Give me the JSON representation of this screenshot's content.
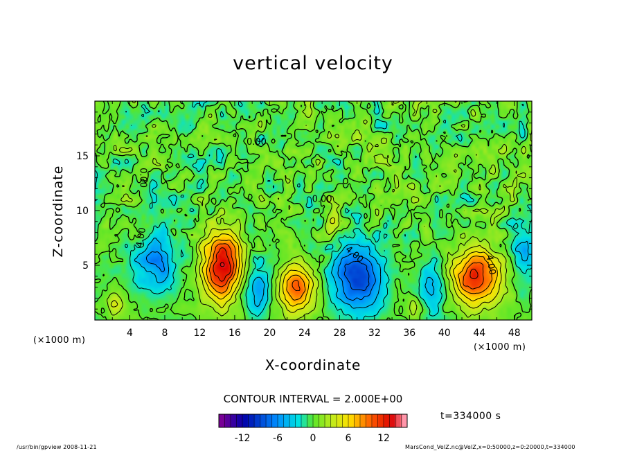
{
  "chart_data": {
    "type": "contour",
    "title": "vertical velocity",
    "xlabel": "X-coordinate",
    "ylabel": "Z-coordinate",
    "x_unit": "(×1000 m)",
    "z_unit": "(×1000 m)",
    "xlim": [
      0,
      50
    ],
    "ylim": [
      0,
      20
    ],
    "xticks": [
      4,
      8,
      12,
      16,
      20,
      24,
      28,
      32,
      36,
      40,
      44,
      48
    ],
    "yticks": [
      5,
      10,
      15
    ],
    "contour_interval_label": "CONTOUR INTERVAL = 2.000E+00",
    "time_label": "t=334000 s",
    "contour_labels": [
      "4.00",
      "4.00",
      "4.00",
      "0.00",
      "0.00",
      "0.00"
    ],
    "colorbar": {
      "ticks": [
        -12,
        -6,
        0,
        6,
        12
      ],
      "range": [
        -16,
        16
      ]
    },
    "features": [
      {
        "x": 14.5,
        "z": 5.0,
        "value": 14,
        "sx": 2.2,
        "sz": 3.2
      },
      {
        "x": 23.0,
        "z": 3.0,
        "value": 10,
        "sx": 2.0,
        "sz": 2.4
      },
      {
        "x": 43.5,
        "z": 4.0,
        "value": 12,
        "sx": 3.0,
        "sz": 2.6
      },
      {
        "x": 2.2,
        "z": 1.5,
        "value": 4,
        "sx": 1.0,
        "sz": 1.0
      },
      {
        "x": 36.5,
        "z": 1.2,
        "value": 4,
        "sx": 1.0,
        "sz": 0.9
      },
      {
        "x": 27.0,
        "z": 9.0,
        "value": 5,
        "sx": 0.8,
        "sz": 1.4
      },
      {
        "x": 30.0,
        "z": 4.0,
        "value": -10,
        "sx": 2.8,
        "sz": 3.0
      },
      {
        "x": 7.0,
        "z": 5.5,
        "value": -6,
        "sx": 2.5,
        "sz": 3.0
      },
      {
        "x": 18.5,
        "z": 3.0,
        "value": -5,
        "sx": 1.8,
        "sz": 2.6
      },
      {
        "x": 38.5,
        "z": 3.0,
        "value": -5,
        "sx": 1.8,
        "sz": 2.4
      },
      {
        "x": 49.0,
        "z": 6.0,
        "value": -5,
        "sx": 1.5,
        "sz": 2.8
      }
    ]
  },
  "footer": {
    "program": "/usr/bin/gpview   2008-11-21",
    "source": "MarsCond_VelZ.nc@VelZ,x=0:50000,z=0:20000,t=334000"
  }
}
